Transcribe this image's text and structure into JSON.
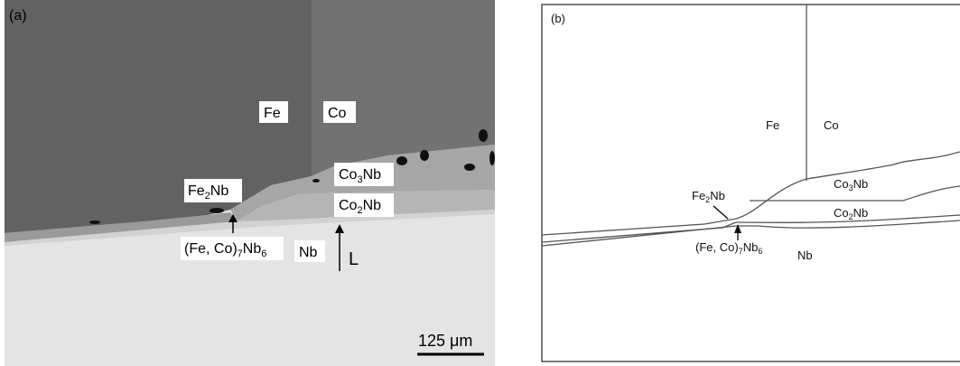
{
  "panel_a": {
    "label": "(a)",
    "fe": "Fe",
    "co": "Co",
    "co3nb": [
      "Co",
      "3",
      "Nb"
    ],
    "co2nb": [
      "Co",
      "2",
      "Nb"
    ],
    "fe2nb": [
      "Fe",
      "2",
      "Nb"
    ],
    "fecomb": [
      "(Fe, Co)",
      "7",
      "Nb",
      "6"
    ],
    "nb": "Nb",
    "direction": "L",
    "scale_bar": "125 μm"
  },
  "panel_b": {
    "label": "(b)",
    "fe": "Fe",
    "co": "Co",
    "co3nb": [
      "Co",
      "3",
      "Nb"
    ],
    "co2nb": [
      "Co",
      "2",
      "Nb"
    ],
    "fe2nb": [
      "Fe",
      "2",
      "Nb"
    ],
    "fecomb": [
      "(Fe, Co)",
      "7",
      "Nb",
      "6"
    ],
    "nb": "Nb"
  }
}
